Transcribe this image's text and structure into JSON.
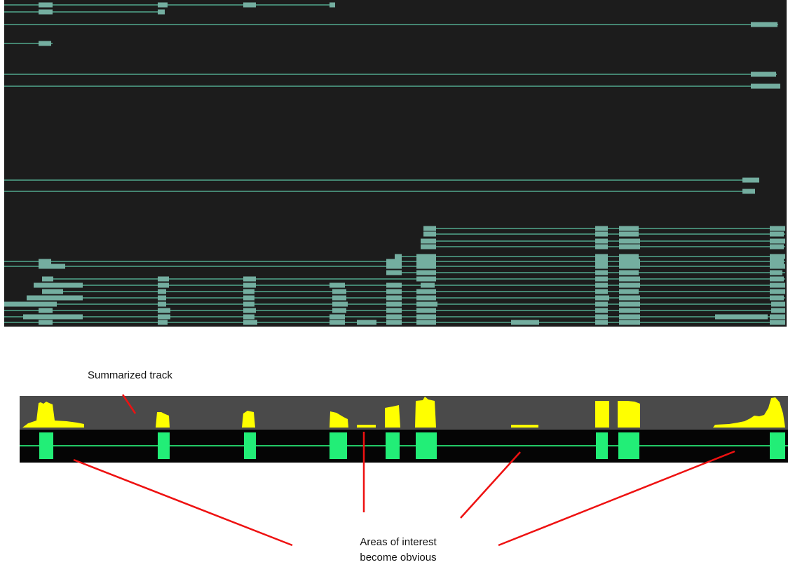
{
  "labels": {
    "summarized_track": "Summarized track",
    "areas_line1": "Areas of interest",
    "areas_line2": "become obvious"
  },
  "colors": {
    "browser_bg": "#1c1c1c",
    "read_fill": "#74aea0",
    "read_line": "#5cc4a4",
    "summary_bg": "#4a4a4a",
    "coverage": "#ffff00",
    "gene_bg": "#050505",
    "gene_exon": "#22ee77",
    "gene_line": "#22c866",
    "callout": "#ee1111"
  },
  "icons": {
    "coverage_peaks": "coverage-peaks-icon",
    "gene_exons": "gene-exon-icon"
  }
}
